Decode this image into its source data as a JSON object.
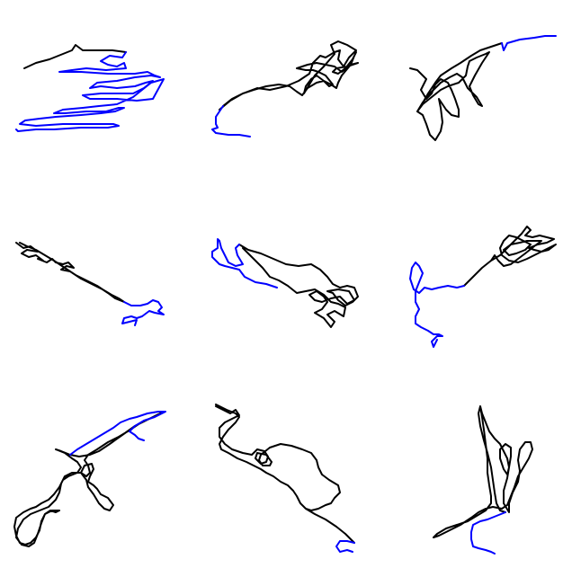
{
  "colors": {
    "background": "#ffffff",
    "segment_primary": "#000000",
    "segment_secondary": "#0000ff"
  },
  "trajectories": [
    {
      "id": "trajectory-1"
    },
    {
      "id": "trajectory-2"
    },
    {
      "id": "trajectory-3"
    },
    {
      "id": "trajectory-4"
    },
    {
      "id": "trajectory-5"
    },
    {
      "id": "trajectory-6"
    },
    {
      "id": "trajectory-7"
    },
    {
      "id": "trajectory-8"
    },
    {
      "id": "trajectory-9"
    }
  ]
}
